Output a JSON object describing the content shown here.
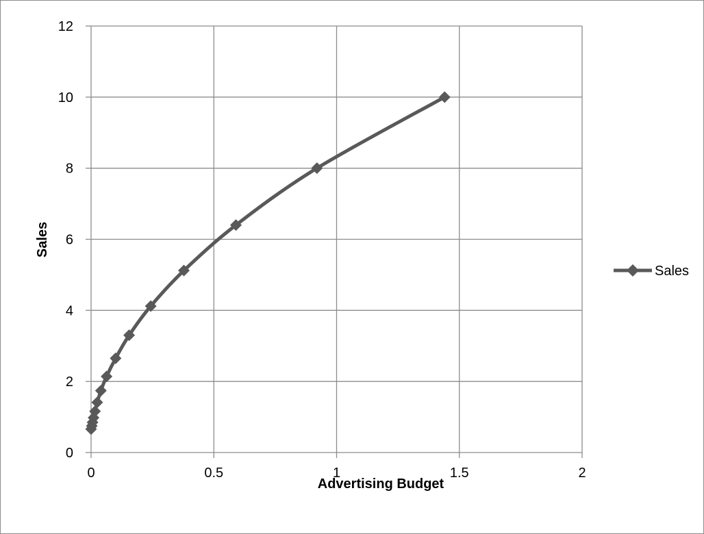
{
  "chart_data": {
    "type": "scatter",
    "title": "",
    "xlabel": "Advertising Budget",
    "ylabel": "Sales",
    "xlim": [
      0,
      2
    ],
    "ylim": [
      0,
      12
    ],
    "xticks": [
      "0",
      "0.5",
      "1",
      "1.5",
      "2"
    ],
    "yticks": [
      "0",
      "2",
      "4",
      "6",
      "8",
      "10",
      "12"
    ],
    "grid": true,
    "legend_position": "right",
    "series": [
      {
        "name": "Sales",
        "color": "#595959",
        "marker": "diamond",
        "line": "smooth",
        "points": [
          {
            "x": 0.0,
            "y": 0.66
          },
          {
            "x": 0.003,
            "y": 0.75
          },
          {
            "x": 0.006,
            "y": 0.85
          },
          {
            "x": 0.01,
            "y": 0.98
          },
          {
            "x": 0.016,
            "y": 1.16
          },
          {
            "x": 0.025,
            "y": 1.41
          },
          {
            "x": 0.04,
            "y": 1.74
          },
          {
            "x": 0.063,
            "y": 2.14
          },
          {
            "x": 0.1,
            "y": 2.65
          },
          {
            "x": 0.155,
            "y": 3.3
          },
          {
            "x": 0.243,
            "y": 4.12
          },
          {
            "x": 0.378,
            "y": 5.12
          },
          {
            "x": 0.59,
            "y": 6.4
          },
          {
            "x": 0.92,
            "y": 8.0
          },
          {
            "x": 1.44,
            "y": 10.0
          }
        ]
      }
    ]
  }
}
